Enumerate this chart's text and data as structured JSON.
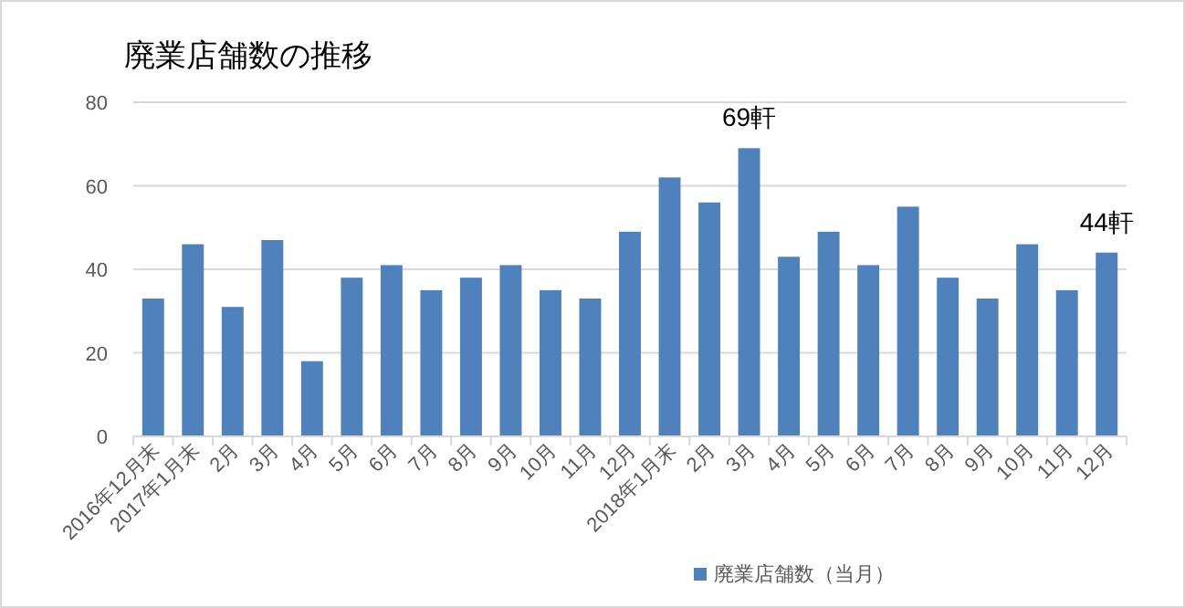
{
  "chart_data": {
    "type": "bar",
    "title": "廃業店舗数の推移",
    "categories": [
      "2016年12月末",
      "2017年1月末",
      "2月",
      "3月",
      "4月",
      "5月",
      "6月",
      "7月",
      "8月",
      "9月",
      "10月",
      "11月",
      "12月",
      "2018年1月末",
      "2月",
      "3月",
      "4月",
      "5月",
      "6月",
      "7月",
      "8月",
      "9月",
      "10月",
      "11月",
      "12月"
    ],
    "series": [
      {
        "name": "廃業店舗数（当月）",
        "color": "#4f81bd",
        "values": [
          33,
          46,
          31,
          47,
          18,
          38,
          41,
          35,
          38,
          41,
          35,
          33,
          49,
          62,
          56,
          69,
          43,
          49,
          41,
          55,
          38,
          33,
          46,
          35,
          44
        ],
        "value_labels": [
          null,
          null,
          null,
          null,
          null,
          null,
          null,
          null,
          null,
          null,
          null,
          null,
          null,
          null,
          null,
          "69軒",
          null,
          null,
          null,
          null,
          null,
          null,
          null,
          null,
          "44軒"
        ]
      }
    ],
    "ylim": [
      0,
      80
    ],
    "yticks": [
      0,
      20,
      40,
      60,
      80
    ],
    "grid": "y",
    "legend": "bottom"
  }
}
